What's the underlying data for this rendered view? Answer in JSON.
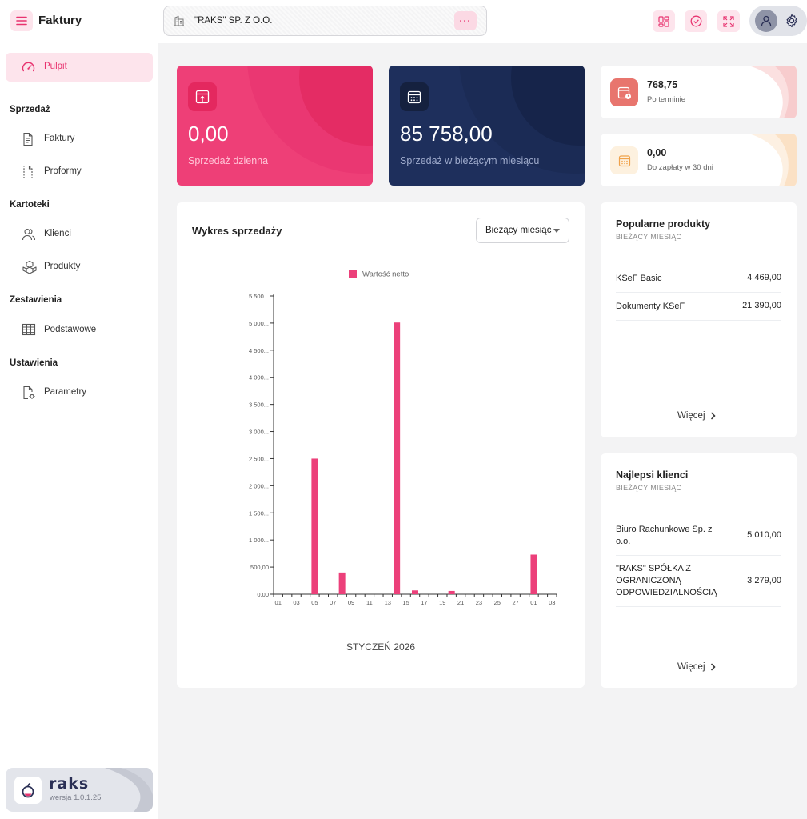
{
  "header": {
    "app_title": "Faktury",
    "company": "\"RAKS\" SP. Z O.O.",
    "company_more": "···"
  },
  "sidebar": {
    "active": "Pulpit",
    "sections": [
      {
        "title": "Sprzedaż",
        "items": [
          "Faktury",
          "Proformy"
        ]
      },
      {
        "title": "Kartoteki",
        "items": [
          "Klienci",
          "Produkty"
        ]
      },
      {
        "title": "Zestawienia",
        "items": [
          "Podstawowe"
        ]
      },
      {
        "title": "Ustawienia",
        "items": [
          "Parametry"
        ]
      }
    ],
    "brand": {
      "name": "raks",
      "version": "wersja 1.0.1.25"
    }
  },
  "stats": {
    "daily": {
      "value": "0,00",
      "label": "Sprzedaż dzienna"
    },
    "monthly": {
      "value": "85 758,00",
      "label": "Sprzedaż w bieżącym miesiącu"
    },
    "overdue": {
      "value": "768,75",
      "label": "Po terminie"
    },
    "due30": {
      "value": "0,00",
      "label": "Do zapłaty w 30 dni"
    }
  },
  "chart_panel": {
    "title": "Wykres sprzedaży",
    "period": "Bieżący miesiąc",
    "month": "STYCZEŃ 2026"
  },
  "chart_data": {
    "type": "bar",
    "legend": "Wartość netto",
    "legend_position": "top",
    "color": "#ec407a",
    "ylim": [
      0,
      5500
    ],
    "y_ticks": [
      "0,00",
      "500,00",
      "1 000...",
      "1 500...",
      "2 000...",
      "2 500...",
      "3 000...",
      "3 500...",
      "4 000...",
      "4 500...",
      "5 000...",
      "5 500..."
    ],
    "x_ticks": [
      "01",
      "03",
      "05",
      "07",
      "09",
      "11",
      "13",
      "15",
      "17",
      "19",
      "21",
      "23",
      "25",
      "27",
      "01",
      "03"
    ],
    "series": [
      {
        "name": "Wartość netto",
        "values": [
          {
            "slot": 4,
            "value": 2500
          },
          {
            "slot": 7,
            "value": 400
          },
          {
            "slot": 13,
            "value": 5010
          },
          {
            "slot": 15,
            "value": 70
          },
          {
            "slot": 19,
            "value": 60
          },
          {
            "slot": 28,
            "value": 730
          }
        ]
      }
    ],
    "slots": 31
  },
  "popular": {
    "title": "Popularne produkty",
    "subtitle": "BIEŻĄCY MIESIĄC",
    "rows": [
      {
        "name": "KSeF Basic",
        "amount": "4 469,00"
      },
      {
        "name": "Dokumenty KSeF",
        "amount": "21 390,00"
      }
    ],
    "more": "Więcej"
  },
  "clients": {
    "title": "Najlepsi klienci",
    "subtitle": "BIEŻĄCY MIESIĄC",
    "rows": [
      {
        "name": "Biuro Rachunkowe Sp. z o.o.",
        "amount": "5 010,00"
      },
      {
        "name": "\"RAKS\" SPÓŁKA Z OGRANICZONĄ ODPOWIEDZIALNOŚCIĄ",
        "amount": "3 279,00"
      }
    ],
    "more": "Więcej"
  },
  "colors": {
    "accent": "#e8336f",
    "navy": "#1e2f5c"
  }
}
